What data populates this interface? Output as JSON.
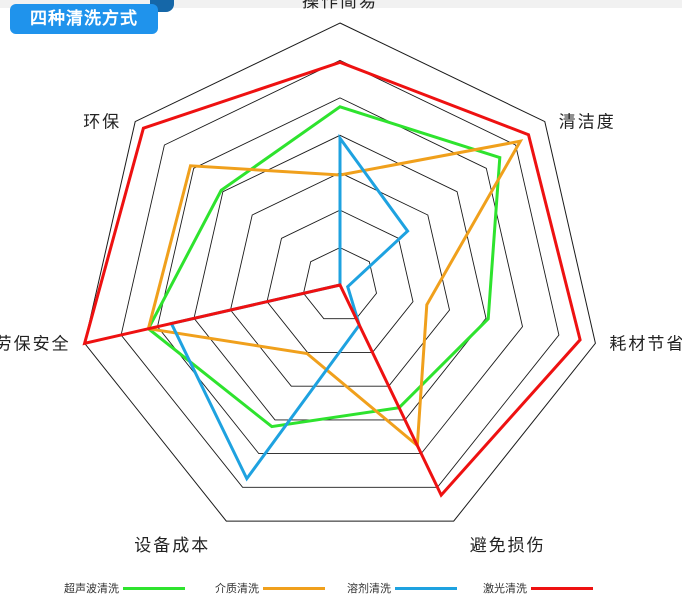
{
  "page": {
    "title": "四种清洗方式"
  },
  "chart_data": {
    "type": "radar",
    "title": "四种清洗方式",
    "axes": [
      "操作简易",
      "清洁度",
      "耗材节省",
      "避免损伤",
      "设备成本",
      "劳保安全",
      "环保"
    ],
    "scale_max": 10,
    "rings": 7,
    "series": [
      {
        "name": "超声波清洗",
        "color": "#2ee32e",
        "values": [
          6.8,
          7.8,
          5.8,
          5.2,
          6.0,
          7.5,
          5.8
        ]
      },
      {
        "name": "介质清洗",
        "color": "#f0a01c",
        "values": [
          4.2,
          8.8,
          3.4,
          6.8,
          2.9,
          7.5,
          7.3
        ]
      },
      {
        "name": "溶剂清洗",
        "color": "#1ea2e0",
        "values": [
          5.6,
          3.3,
          0.3,
          1.7,
          8.2,
          6.6,
          0.0
        ]
      },
      {
        "name": "激光清洗",
        "color": "#ee1111",
        "values": [
          8.5,
          9.2,
          9.4,
          8.9,
          0.0,
          10.0,
          9.6
        ]
      }
    ]
  }
}
